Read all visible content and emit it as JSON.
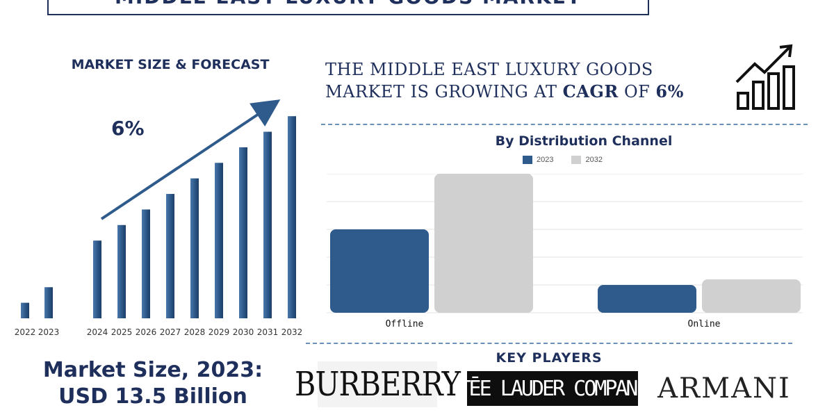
{
  "header": {
    "title": "MIDDLE EAST LUXURY GOODS MARKET"
  },
  "left_panel": {
    "heading": "MARKET SIZE & FORECAST",
    "cagr_label": "6%",
    "market_size_line1": "Market Size, 2023:",
    "market_size_line2": "USD 13.5 Billion"
  },
  "headline": {
    "line1": "THE MIDDLE EAST LUXURY GOODS",
    "line2_prefix": "MARKET IS GROWING AT ",
    "line2_cagr": "CAGR",
    "line2_mid": " OF ",
    "line2_value": "6%"
  },
  "key_players": {
    "heading": "KEY PLAYERS",
    "logos": [
      "BURBERRY",
      "ESTĒE LAUDER COMPANIES",
      "ARMANI"
    ]
  },
  "colors": {
    "primary": "#2e5a8c",
    "secondary": "#d0d0d0",
    "text": "#1f2f5c"
  },
  "chart_data": [
    {
      "type": "bar",
      "title": "MARKET SIZE & FORECAST",
      "categories": [
        "2022",
        "2023",
        "2024",
        "2025",
        "2026",
        "2027",
        "2028",
        "2029",
        "2030",
        "2031",
        "2032"
      ],
      "values": [
        1.0,
        2.0,
        5.0,
        6.0,
        7.0,
        8.0,
        9.0,
        10.0,
        11.0,
        12.0,
        13.0
      ],
      "annotation": "6%",
      "ylim": [
        0,
        13.5
      ],
      "grid": false
    },
    {
      "type": "bar",
      "title": "By Distribution Channel",
      "categories": [
        "Offline",
        "Online"
      ],
      "series": [
        {
          "name": "2023",
          "values": [
            3.0,
            1.0
          ]
        },
        {
          "name": "2032",
          "values": [
            5.0,
            1.2
          ]
        }
      ],
      "ylim": [
        0,
        5
      ],
      "grid": true,
      "legend": "top-center"
    }
  ]
}
